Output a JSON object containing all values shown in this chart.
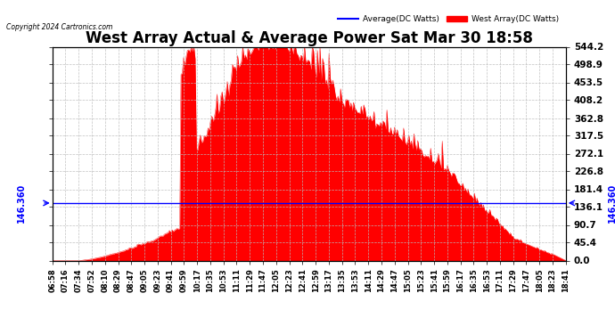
{
  "title": "West Array Actual & Average Power Sat Mar 30 18:58",
  "copyright": "Copyright 2024 Cartronics.com",
  "legend_avg": "Average(DC Watts)",
  "legend_west": "West Array(DC Watts)",
  "legend_avg_color": "blue",
  "legend_west_color": "red",
  "ymin": 0.0,
  "ymax": 544.2,
  "yticks": [
    0.0,
    45.4,
    90.7,
    136.1,
    181.4,
    226.8,
    272.1,
    317.5,
    362.8,
    408.2,
    453.5,
    498.9,
    544.2
  ],
  "hline_value": 146.36,
  "hline_label": "146.360",
  "background_color": "#ffffff",
  "plot_bg_color": "#ffffff",
  "grid_color": "#bbbbbb",
  "fill_color": "red",
  "avg_line_color": "blue",
  "title_fontsize": 12,
  "tick_label_fontsize": 6,
  "ytick_fontsize": 7.5,
  "xtick_labels": [
    "06:58",
    "07:16",
    "07:34",
    "07:52",
    "08:10",
    "08:29",
    "08:47",
    "09:05",
    "09:23",
    "09:41",
    "09:59",
    "10:17",
    "10:35",
    "10:53",
    "11:11",
    "11:29",
    "11:47",
    "12:05",
    "12:23",
    "12:41",
    "12:59",
    "13:17",
    "13:35",
    "13:53",
    "14:11",
    "14:29",
    "14:47",
    "15:05",
    "15:23",
    "15:41",
    "15:59",
    "16:17",
    "16:35",
    "16:53",
    "17:11",
    "17:29",
    "17:47",
    "18:05",
    "18:23",
    "18:41"
  ]
}
